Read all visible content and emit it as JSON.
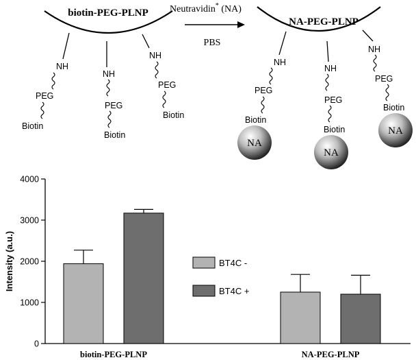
{
  "scheme": {
    "left_particle_label": "biotin-PEG-PLNP",
    "right_particle_label": "NA-PEG-PLNP",
    "arrow_top_label_main": "Neutravidin",
    "arrow_top_label_sup": "*",
    "arrow_top_label_suffix": " (NA)",
    "arrow_bottom_label": "PBS",
    "nh": "NH",
    "peg": "PEG",
    "biotin": "Biotin",
    "na": "NA"
  },
  "chart_data": {
    "type": "bar",
    "categories": [
      "biotin-PEG-PLNP",
      "NA-PEG-PLNP"
    ],
    "series": [
      {
        "name": "BT4C -",
        "values": [
          1940,
          1250
        ],
        "errors": [
          330,
          430
        ],
        "color": "#b3b3b3"
      },
      {
        "name": "BT4C +",
        "values": [
          3170,
          1200
        ],
        "errors": [
          90,
          460
        ],
        "color": "#6e6e6e"
      }
    ],
    "ylabel": "Intensity (a.u.)",
    "ylim": [
      0,
      4000
    ],
    "yticks": [
      "0",
      "1000",
      "2000",
      "3000",
      "4000"
    ],
    "legend_position": "center",
    "grid": false
  }
}
